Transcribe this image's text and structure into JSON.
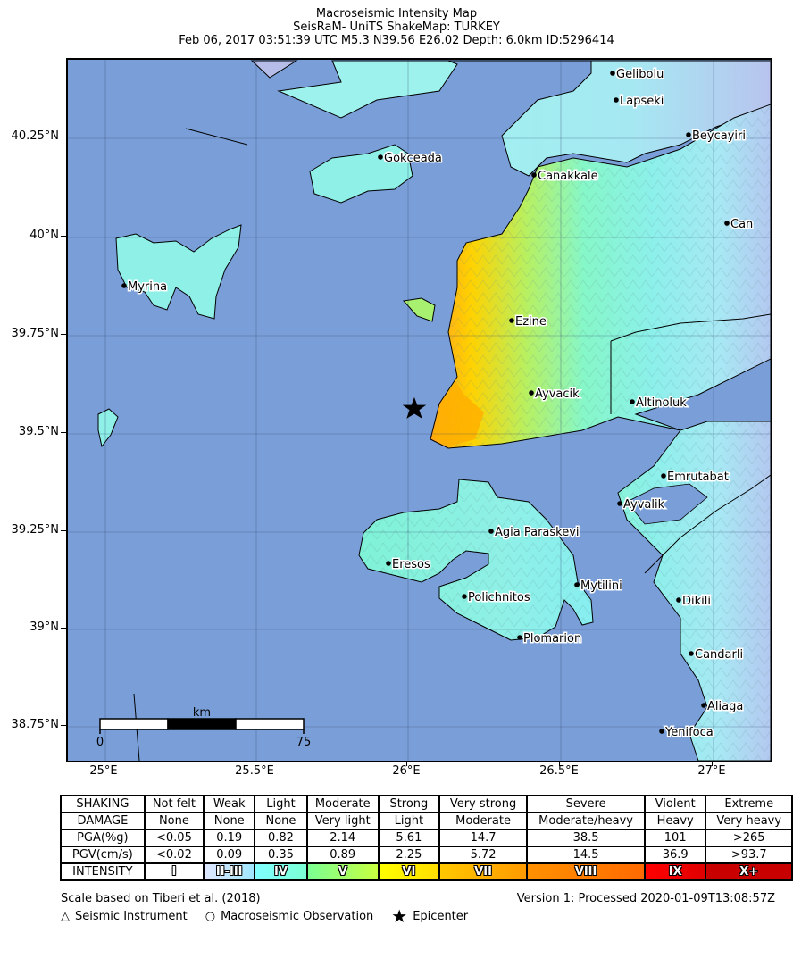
{
  "title": {
    "line1": "Macroseismic Intensity Map",
    "line2": "SeisRaM- UniTS ShakeMap: TURKEY",
    "line3": "Feb 06, 2017 03:51:39 UTC M5.3 N39.56 E26.02 Depth: 6.0km ID:5296414"
  },
  "map": {
    "lat_labels": [
      "40.25°N",
      "40°N",
      "39.75°N",
      "39.5°N",
      "39.25°N",
      "39°N",
      "38.75°N"
    ],
    "lon_labels": [
      "25°E",
      "25.5°E",
      "26°E",
      "26.5°E",
      "27°E"
    ],
    "cities": [
      {
        "name": "Gelibolu"
      },
      {
        "name": "Lapseki"
      },
      {
        "name": "Beycayiri"
      },
      {
        "name": "Gokceada"
      },
      {
        "name": "Canakkale"
      },
      {
        "name": "Can"
      },
      {
        "name": "Myrina"
      },
      {
        "name": "Ezine"
      },
      {
        "name": "Ayvacik"
      },
      {
        "name": "Altinoluk"
      },
      {
        "name": "Emrutabat"
      },
      {
        "name": "Ayvalik"
      },
      {
        "name": "Agia Paraskevi"
      },
      {
        "name": "Eresos"
      },
      {
        "name": "Mytilini"
      },
      {
        "name": "Polichnitos"
      },
      {
        "name": "Dikili"
      },
      {
        "name": "Plomarion"
      },
      {
        "name": "Candarli"
      },
      {
        "name": "Aliaga"
      },
      {
        "name": "Yenifoca"
      }
    ],
    "scalebar": {
      "unit": "km",
      "start": "0",
      "end": "75"
    },
    "epicenter_symbol": "star-icon"
  },
  "legend": {
    "rows": [
      {
        "label": "SHAKING",
        "cells": [
          "Not felt",
          "Weak",
          "Light",
          "Moderate",
          "Strong",
          "Very strong",
          "Severe",
          "Violent",
          "Extreme"
        ]
      },
      {
        "label": "DAMAGE",
        "cells": [
          "None",
          "None",
          "None",
          "Very light",
          "Light",
          "Moderate",
          "Moderate/heavy",
          "Heavy",
          "Very heavy"
        ]
      },
      {
        "label": "PGA(%g)",
        "cells": [
          "<0.05",
          "0.19",
          "0.82",
          "2.14",
          "5.61",
          "14.7",
          "38.5",
          "101",
          ">265"
        ]
      },
      {
        "label": "PGV(cm/s)",
        "cells": [
          "<0.02",
          "0.09",
          "0.35",
          "0.89",
          "2.25",
          "5.72",
          "14.5",
          "36.9",
          ">93.7"
        ]
      }
    ],
    "intensity_label": "INTENSITY",
    "intensity": [
      {
        "label": "I",
        "color_from": "#ffffff",
        "color_to": "#ffffff"
      },
      {
        "label": "II-III",
        "color_from": "#dfe6fe",
        "color_to": "#a0e6ff"
      },
      {
        "label": "IV",
        "color_from": "#80ffff",
        "color_to": "#7affd4"
      },
      {
        "label": "V",
        "color_from": "#7aff93",
        "color_to": "#c8ff40"
      },
      {
        "label": "VI",
        "color_from": "#ffff00",
        "color_to": "#ffdd00"
      },
      {
        "label": "VII",
        "color_from": "#ffc800",
        "color_to": "#ff9a00"
      },
      {
        "label": "VIII",
        "color_from": "#ff9100",
        "color_to": "#ff6a00"
      },
      {
        "label": "IX",
        "color_from": "#ff0000",
        "color_to": "#e00000"
      },
      {
        "label": "X+",
        "color_from": "#c80000",
        "color_to": "#c80000"
      }
    ]
  },
  "footer": {
    "scale_note": "Scale based on Tiberi et al. (2018)",
    "version": "Version 1: Processed 2020-01-09T13:08:57Z",
    "symbols": [
      {
        "icon": "triangle-icon",
        "glyph": "△",
        "label": "Seismic Instrument"
      },
      {
        "icon": "circle-icon",
        "glyph": "○",
        "label": "Macroseismic Observation"
      },
      {
        "icon": "star-icon",
        "glyph": "★",
        "label": "Epicenter"
      }
    ]
  }
}
